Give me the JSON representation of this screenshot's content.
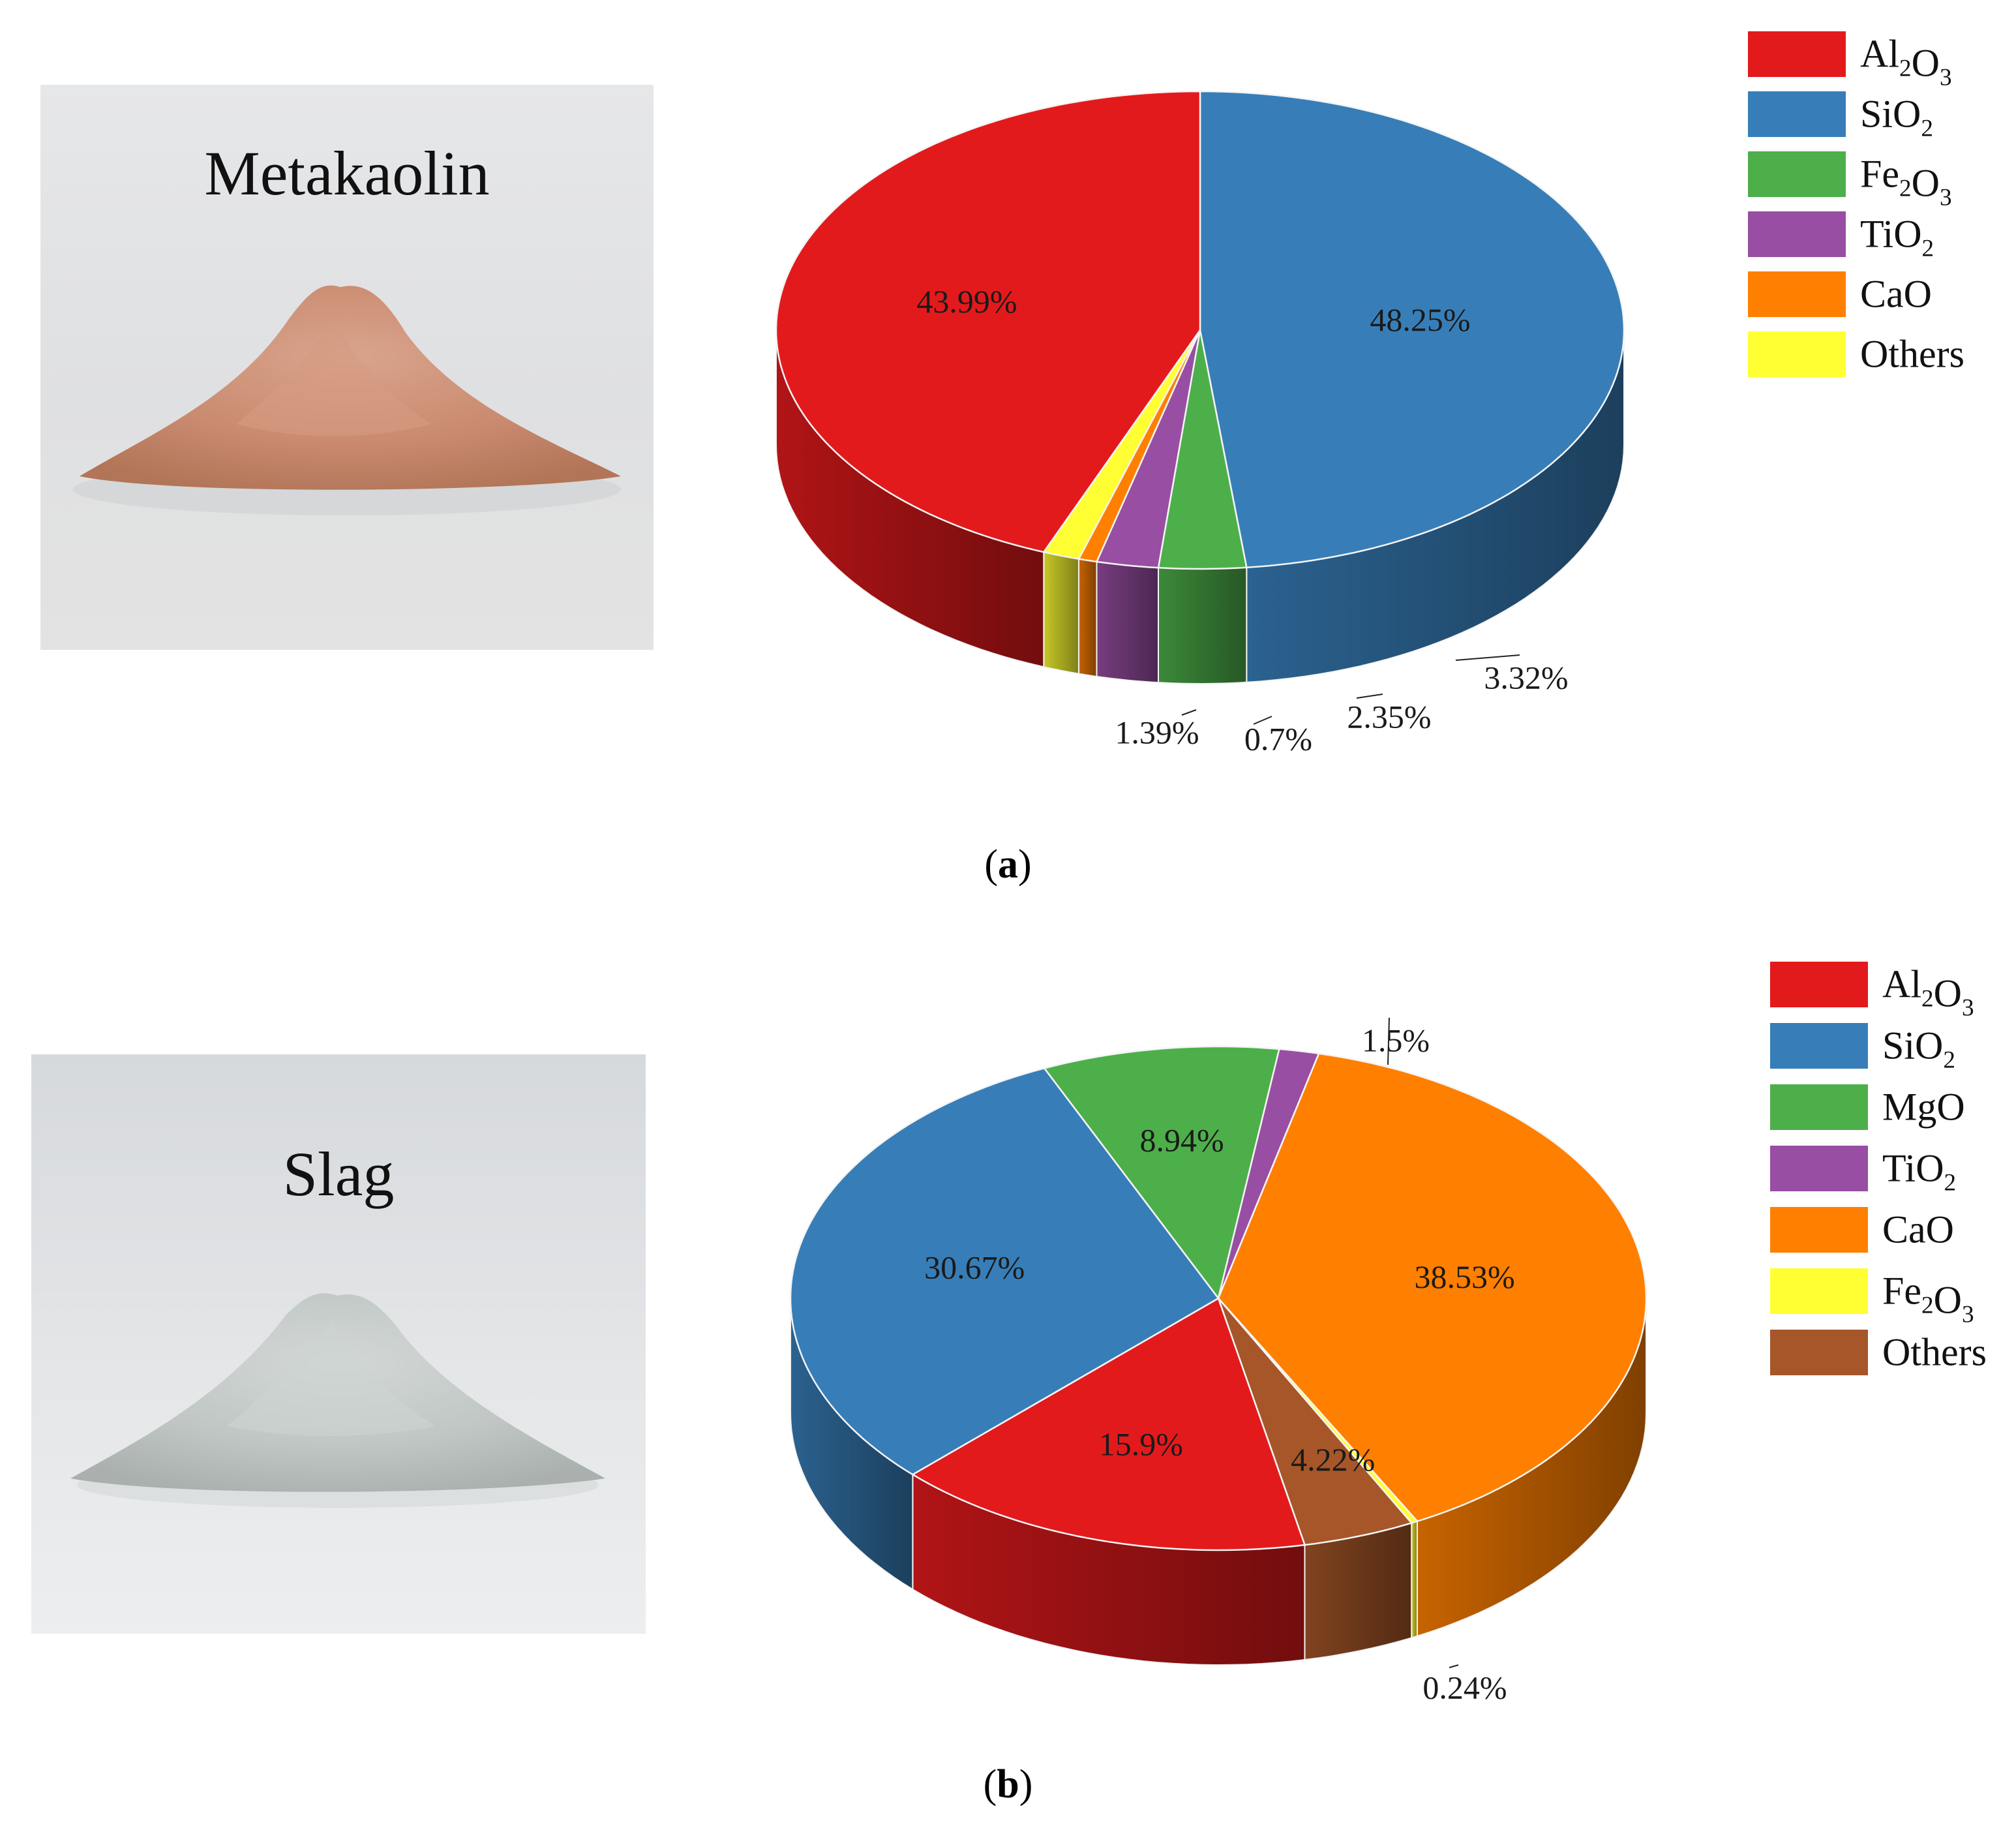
{
  "figure": {
    "panels": [
      {
        "id": "a",
        "photo_label": "Metakaolin",
        "caption_letter": "a"
      },
      {
        "id": "b",
        "photo_label": "Slag",
        "caption_letter": "b"
      }
    ]
  },
  "chart_data": [
    {
      "type": "pie",
      "title": "",
      "legend_position": "top-right",
      "legend": [
        {
          "label": "Al2O3",
          "base": "Al",
          "sub1": "2",
          "mid": "O",
          "sub2": "3",
          "color": "#E31A1C"
        },
        {
          "label": "SiO2",
          "base": "SiO",
          "sub1": "2",
          "mid": "",
          "sub2": "",
          "color": "#377EB8"
        },
        {
          "label": "Fe2O3",
          "base": "Fe",
          "sub1": "2",
          "mid": "O",
          "sub2": "3",
          "color": "#4DAF4A"
        },
        {
          "label": "TiO2",
          "base": "TiO",
          "sub1": "2",
          "mid": "",
          "sub2": "",
          "color": "#984EA3"
        },
        {
          "label": "CaO",
          "base": "CaO",
          "sub1": "",
          "mid": "",
          "sub2": "",
          "color": "#FF7F00"
        },
        {
          "label": "Others",
          "base": "Others",
          "sub1": "",
          "mid": "",
          "sub2": "",
          "color": "#FFFF33"
        }
      ],
      "slices": [
        {
          "name": "SiO2",
          "value": 48.25,
          "label": "48.25%",
          "color": "#377EB8"
        },
        {
          "name": "Fe2O3",
          "value": 3.32,
          "label": "3.32%",
          "color": "#4DAF4A"
        },
        {
          "name": "TiO2",
          "value": 2.35,
          "label": "2.35%",
          "color": "#984EA3"
        },
        {
          "name": "CaO",
          "value": 0.7,
          "label": "0.7%",
          "color": "#FF7F00"
        },
        {
          "name": "Others",
          "value": 1.39,
          "label": "1.39%",
          "color": "#FFFF33"
        },
        {
          "name": "Al2O3",
          "value": 43.99,
          "label": "43.99%",
          "color": "#E31A1C"
        }
      ]
    },
    {
      "type": "pie",
      "title": "",
      "legend_position": "top-right",
      "legend": [
        {
          "label": "Al2O3",
          "base": "Al",
          "sub1": "2",
          "mid": "O",
          "sub2": "3",
          "color": "#E31A1C"
        },
        {
          "label": "SiO2",
          "base": "SiO",
          "sub1": "2",
          "mid": "",
          "sub2": "",
          "color": "#377EB8"
        },
        {
          "label": "MgO",
          "base": "MgO",
          "sub1": "",
          "mid": "",
          "sub2": "",
          "color": "#4DAF4A"
        },
        {
          "label": "TiO2",
          "base": "TiO",
          "sub1": "2",
          "mid": "",
          "sub2": "",
          "color": "#984EA3"
        },
        {
          "label": "CaO",
          "base": "CaO",
          "sub1": "",
          "mid": "",
          "sub2": "",
          "color": "#FF7F00"
        },
        {
          "label": "Fe2O3",
          "base": "Fe",
          "sub1": "2",
          "mid": "O",
          "sub2": "3",
          "color": "#FFFF33"
        },
        {
          "label": "Others",
          "base": "Others",
          "sub1": "",
          "mid": "",
          "sub2": "",
          "color": "#A65628"
        }
      ],
      "slices": [
        {
          "name": "MgO",
          "value": 8.94,
          "label": "8.94%",
          "color": "#4DAF4A"
        },
        {
          "name": "TiO2",
          "value": 1.5,
          "label": "1.5%",
          "color": "#984EA3"
        },
        {
          "name": "CaO",
          "value": 38.53,
          "label": "38.53%",
          "color": "#FF7F00"
        },
        {
          "name": "Fe2O3",
          "value": 0.24,
          "label": "0.24%",
          "color": "#FFFF33"
        },
        {
          "name": "Others",
          "value": 4.22,
          "label": "4.22%",
          "color": "#A65628"
        },
        {
          "name": "Al2O3",
          "value": 15.9,
          "label": "15.9%",
          "color": "#E31A1C"
        },
        {
          "name": "SiO2",
          "value": 30.67,
          "label": "30.67%",
          "color": "#377EB8"
        }
      ]
    }
  ]
}
